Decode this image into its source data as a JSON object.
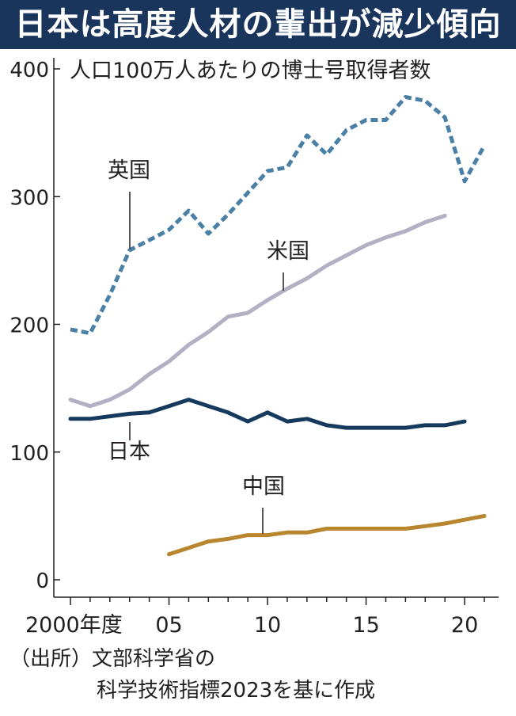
{
  "title": "日本は高度人材の輩出が減少傾向",
  "source": {
    "line1": "（出所）文部科学省の",
    "line2": "科学技術指標2023を基に作成"
  },
  "colors": {
    "title_bg": "#1a355c",
    "uk": "#4a7fa6",
    "us": "#b3b0c4",
    "japan": "#153a5e",
    "china": "#b8862e"
  },
  "chart_data": {
    "type": "line",
    "subtitle": "人口100万人あたりの博士号取得者数",
    "ylim": [
      0,
      400
    ],
    "yticks": [
      0,
      100,
      200,
      300,
      400
    ],
    "xlim": [
      2000,
      2021
    ],
    "xticks": [
      {
        "value": 2000,
        "label": "2000年度"
      },
      {
        "value": 2005,
        "label": "05"
      },
      {
        "value": 2010,
        "label": "10"
      },
      {
        "value": 2015,
        "label": "15"
      },
      {
        "value": 2020,
        "label": "20"
      }
    ],
    "grid": false,
    "series": [
      {
        "name": "英国",
        "key": "uk",
        "style": "dashed",
        "x": [
          2000,
          2001,
          2002,
          2003,
          2004,
          2005,
          2006,
          2007,
          2008,
          2009,
          2010,
          2011,
          2012,
          2013,
          2014,
          2015,
          2016,
          2017,
          2018,
          2019,
          2020,
          2021
        ],
        "values": [
          196,
          193,
          223,
          258,
          266,
          274,
          289,
          271,
          286,
          303,
          320,
          323,
          348,
          333,
          352,
          360,
          360,
          378,
          375,
          362,
          312,
          340
        ]
      },
      {
        "name": "米国",
        "key": "us",
        "style": "solid",
        "x": [
          2000,
          2001,
          2002,
          2003,
          2004,
          2005,
          2006,
          2007,
          2008,
          2009,
          2010,
          2011,
          2012,
          2013,
          2014,
          2015,
          2016,
          2017,
          2018,
          2019
        ],
        "values": [
          141,
          136,
          141,
          149,
          161,
          171,
          184,
          194,
          206,
          209,
          219,
          228,
          236,
          246,
          254,
          262,
          268,
          273,
          280,
          285
        ]
      },
      {
        "name": "日本",
        "key": "japan",
        "style": "solid",
        "x": [
          2000,
          2001,
          2002,
          2003,
          2004,
          2005,
          2006,
          2007,
          2008,
          2009,
          2010,
          2011,
          2012,
          2013,
          2014,
          2015,
          2016,
          2017,
          2018,
          2019,
          2020
        ],
        "values": [
          126,
          126,
          128,
          130,
          131,
          136,
          141,
          136,
          131,
          124,
          131,
          124,
          126,
          121,
          119,
          119,
          119,
          119,
          121,
          121,
          124
        ]
      },
      {
        "name": "中国",
        "key": "china",
        "style": "solid",
        "x": [
          2005,
          2006,
          2007,
          2008,
          2009,
          2010,
          2011,
          2012,
          2013,
          2014,
          2015,
          2016,
          2017,
          2018,
          2019,
          2020,
          2021
        ],
        "values": [
          20,
          25,
          30,
          32,
          35,
          35,
          37,
          37,
          40,
          40,
          40,
          40,
          40,
          42,
          44,
          47,
          50
        ]
      }
    ]
  }
}
